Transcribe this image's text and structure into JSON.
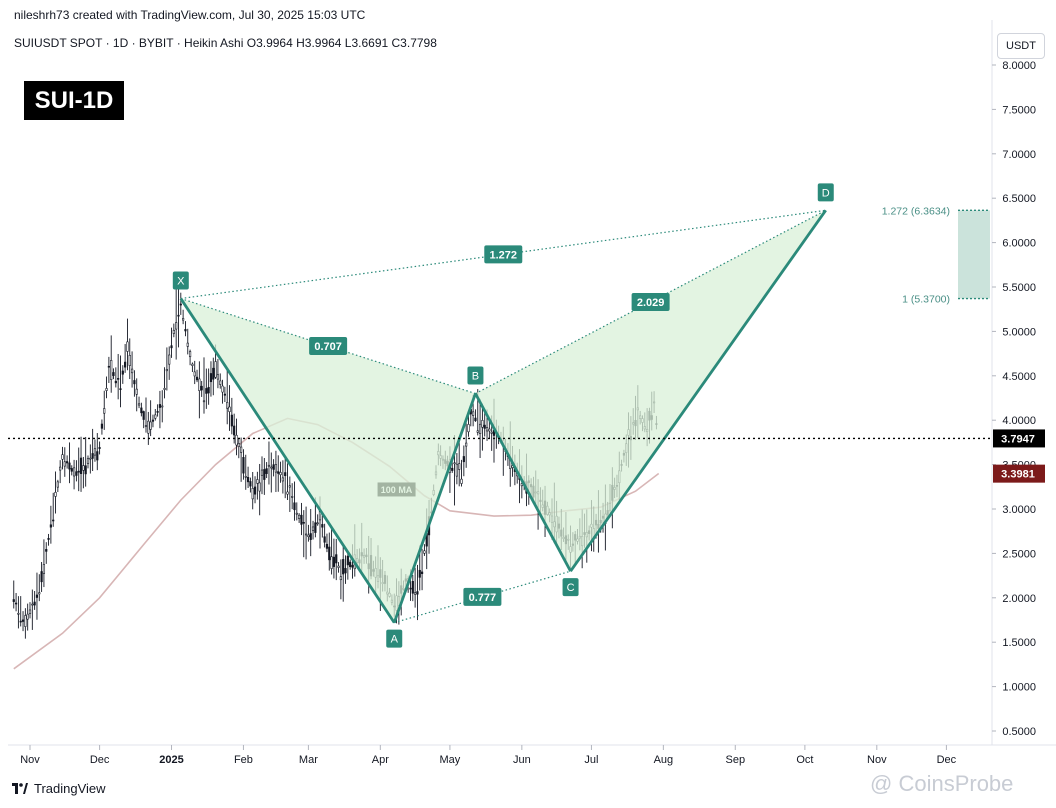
{
  "header": {
    "credit": "nileshrh73 created with TradingView.com, Jul 30, 2025 15:03 UTC",
    "symbol_line": "SUIUSDT SPOT · 1D · BYBIT · Heikin Ashi  O3.9964  H3.9964  L3.6691  C3.7798",
    "title_badge": "SUI-1D",
    "currency": "USDT"
  },
  "footer": {
    "brand": "TradingView",
    "watermark": "@ CoinsProbe"
  },
  "chart_data": {
    "type": "candlestick",
    "x_ticks": [
      "Nov",
      "Dec",
      "2025",
      "Feb",
      "Mar",
      "Apr",
      "May",
      "Jun",
      "Jul",
      "Aug",
      "Sep",
      "Oct",
      "Nov",
      "Dec"
    ],
    "y_ticks": [
      "8.0000",
      "7.5000",
      "7.0000",
      "6.5000",
      "6.0000",
      "5.5000",
      "5.0000",
      "4.5000",
      "4.0000",
      "3.5000",
      "3.0000",
      "2.5000",
      "2.0000",
      "1.5000",
      "1.0000",
      "0.5000"
    ],
    "ylim": [
      0.3,
      8.0
    ],
    "last_price": {
      "value": 3.7947,
      "label": "3.7947",
      "color": "#000000"
    },
    "ma": {
      "label": "100 MA",
      "value": 3.3981,
      "value_label": "3.3981",
      "color": "#7c1a1a"
    },
    "price_path": [
      [
        "2024-10-25",
        2.0
      ],
      [
        "2024-10-30",
        1.7
      ],
      [
        "2024-11-05",
        2.1
      ],
      [
        "2024-11-10",
        2.8
      ],
      [
        "2024-11-15",
        3.6
      ],
      [
        "2024-11-20",
        3.4
      ],
      [
        "2024-11-25",
        3.5
      ],
      [
        "2024-12-01",
        3.7
      ],
      [
        "2024-12-05",
        4.6
      ],
      [
        "2024-12-10",
        4.4
      ],
      [
        "2024-12-13",
        4.8
      ],
      [
        "2024-12-18",
        4.2
      ],
      [
        "2024-12-22",
        3.9
      ],
      [
        "2024-12-28",
        4.2
      ],
      [
        "2025-01-02",
        5.0
      ],
      [
        "2025-01-05",
        5.3
      ],
      [
        "2025-01-10",
        4.6
      ],
      [
        "2025-01-15",
        4.3
      ],
      [
        "2025-01-20",
        4.6
      ],
      [
        "2025-01-25",
        4.2
      ],
      [
        "2025-02-01",
        3.5
      ],
      [
        "2025-02-05",
        3.2
      ],
      [
        "2025-02-10",
        3.4
      ],
      [
        "2025-02-15",
        3.5
      ],
      [
        "2025-02-20",
        3.3
      ],
      [
        "2025-02-25",
        2.9
      ],
      [
        "2025-03-01",
        2.7
      ],
      [
        "2025-03-06",
        2.9
      ],
      [
        "2025-03-10",
        2.5
      ],
      [
        "2025-03-15",
        2.3
      ],
      [
        "2025-03-20",
        2.4
      ],
      [
        "2025-03-25",
        2.5
      ],
      [
        "2025-03-30",
        2.3
      ],
      [
        "2025-04-03",
        2.2
      ],
      [
        "2025-04-07",
        1.9
      ],
      [
        "2025-04-12",
        2.2
      ],
      [
        "2025-04-17",
        2.1
      ],
      [
        "2025-04-22",
        2.8
      ],
      [
        "2025-04-26",
        3.6
      ],
      [
        "2025-05-01",
        3.5
      ],
      [
        "2025-05-06",
        3.4
      ],
      [
        "2025-05-10",
        4.1
      ],
      [
        "2025-05-13",
        4.0
      ],
      [
        "2025-05-18",
        3.9
      ],
      [
        "2025-05-23",
        3.8
      ],
      [
        "2025-05-28",
        3.5
      ],
      [
        "2025-06-02",
        3.3
      ],
      [
        "2025-06-07",
        3.2
      ],
      [
        "2025-06-12",
        3.0
      ],
      [
        "2025-06-17",
        2.8
      ],
      [
        "2025-06-22",
        2.6
      ],
      [
        "2025-06-27",
        2.7
      ],
      [
        "2025-07-02",
        2.8
      ],
      [
        "2025-07-07",
        2.9
      ],
      [
        "2025-07-12",
        3.3
      ],
      [
        "2025-07-17",
        3.8
      ],
      [
        "2025-07-21",
        4.1
      ],
      [
        "2025-07-25",
        3.9
      ],
      [
        "2025-07-28",
        4.2
      ],
      [
        "2025-07-30",
        3.78
      ]
    ],
    "ma100_path": [
      [
        "2024-10-25",
        1.2
      ],
      [
        "2024-11-15",
        1.6
      ],
      [
        "2024-12-01",
        2.0
      ],
      [
        "2024-12-20",
        2.6
      ],
      [
        "2025-01-05",
        3.1
      ],
      [
        "2025-01-20",
        3.5
      ],
      [
        "2025-02-05",
        3.85
      ],
      [
        "2025-02-20",
        4.02
      ],
      [
        "2025-03-05",
        3.95
      ],
      [
        "2025-03-20",
        3.75
      ],
      [
        "2025-04-05",
        3.48
      ],
      [
        "2025-04-20",
        3.15
      ],
      [
        "2025-05-01",
        2.98
      ],
      [
        "2025-05-20",
        2.92
      ],
      [
        "2025-06-05",
        2.93
      ],
      [
        "2025-06-20",
        2.98
      ],
      [
        "2025-07-05",
        3.02
      ],
      [
        "2025-07-20",
        3.2
      ],
      [
        "2025-07-30",
        3.4
      ]
    ],
    "pattern": {
      "points": [
        {
          "label": "X",
          "date": "2025-01-05",
          "price": 5.37
        },
        {
          "label": "A",
          "date": "2025-04-07",
          "price": 1.72
        },
        {
          "label": "B",
          "date": "2025-05-12",
          "price": 4.3
        },
        {
          "label": "C",
          "date": "2025-06-22",
          "price": 2.3
        },
        {
          "label": "D",
          "date": "2025-10-10",
          "price": 6.3634
        }
      ],
      "ratios": [
        {
          "value": "0.707",
          "from": "X",
          "to": "B"
        },
        {
          "value": "0.777",
          "from": "A",
          "to": "C"
        },
        {
          "value": "2.029",
          "from": "B",
          "to": "D"
        },
        {
          "value": "1.272",
          "from": "X",
          "to": "D"
        }
      ],
      "levels": [
        {
          "label": "1.272 (6.3634)",
          "value": 6.3634
        },
        {
          "label": "1 (5.3700)",
          "value": 5.37
        }
      ],
      "color": "#2b8a7a",
      "fill": "#d9f0d8"
    }
  }
}
